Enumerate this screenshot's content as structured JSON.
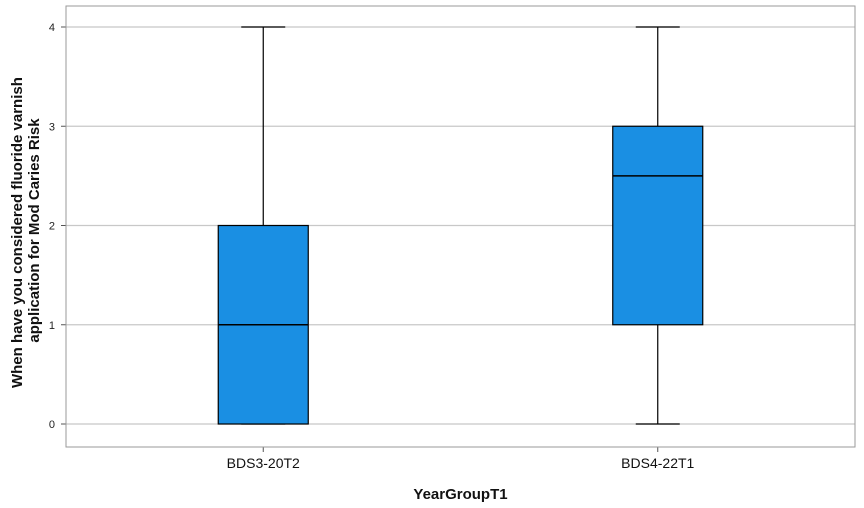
{
  "chart_data": {
    "type": "boxplot",
    "title": "",
    "xlabel": "YearGroupT1",
    "ylabel": "When have you considered fluoride varnish application for Mod Caries Risk",
    "ylabel_lines": [
      "When have you considered fluoride varnish",
      "application for Mod Caries Risk"
    ],
    "ylim": [
      0,
      4
    ],
    "yticks": [
      0,
      1,
      2,
      3,
      4
    ],
    "grid": true,
    "box_color": "#1a8fe3",
    "categories": [
      "BDS3-20T2",
      "BDS4-22T1"
    ],
    "boxes": [
      {
        "category": "BDS3-20T2",
        "min": 0,
        "q1": 0,
        "median": 1,
        "q3": 2,
        "max": 4
      },
      {
        "category": "BDS4-22T1",
        "min": 0,
        "q1": 1,
        "median": 2.5,
        "q3": 3,
        "max": 4
      }
    ]
  }
}
